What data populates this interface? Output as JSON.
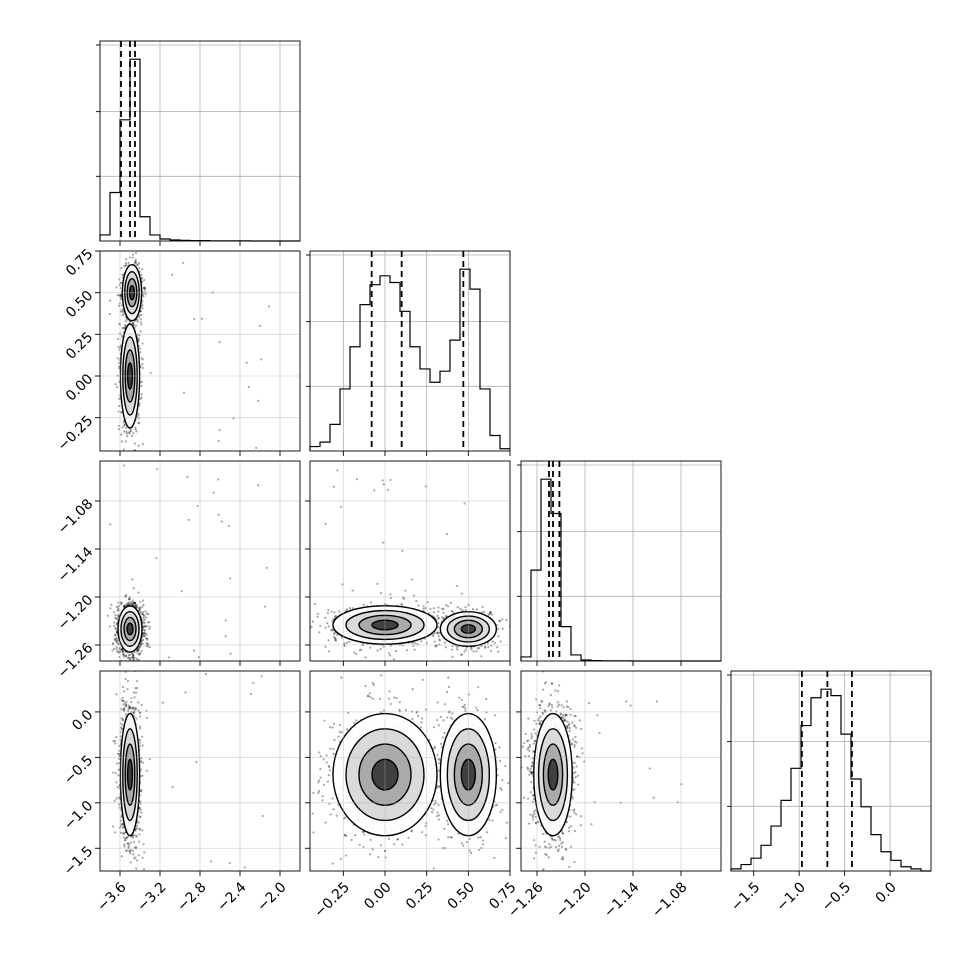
{
  "chart_data": {
    "type": "corner",
    "description_params": 4,
    "grid": true,
    "parameters": [
      {
        "ticks": [
          -3.6,
          -3.2,
          -2.8,
          -2.4,
          -2.0
        ],
        "tick_labels": [
          "−3.6",
          "−3.2",
          "−2.8",
          "−2.4",
          "−2.0"
        ],
        "range": [
          -3.8,
          -1.8
        ],
        "median": -3.5,
        "quantiles": [
          -3.59,
          -3.5,
          -3.45
        ]
      },
      {
        "ticks": [
          -0.25,
          0.0,
          0.25,
          0.5,
          0.75
        ],
        "tick_labels": [
          "−0.25",
          "0.00",
          "0.25",
          "0.50",
          "0.75"
        ],
        "range": [
          -0.45,
          0.75
        ],
        "median": 0.1,
        "quantiles": [
          -0.08,
          0.1,
          0.47
        ]
      },
      {
        "ticks": [
          -1.26,
          -1.2,
          -1.14,
          -1.08
        ],
        "tick_labels": [
          "−1.26",
          "−1.20",
          "−1.14",
          "−1.08"
        ],
        "range": [
          -1.28,
          -1.03
        ],
        "median": -1.24,
        "quantiles": [
          -1.245,
          -1.24,
          -1.232
        ]
      },
      {
        "ticks": [
          -1.5,
          -1.0,
          -0.5,
          0.0
        ],
        "tick_labels": [
          "−1.5",
          "−1.0",
          "−0.5",
          "0.0"
        ],
        "range": [
          -1.75,
          0.45
        ],
        "median": -0.69,
        "quantiles": [
          -0.97,
          -0.69,
          -0.42
        ]
      }
    ],
    "histograms": [
      {
        "param": 0,
        "edges": [
          -3.8,
          -3.7,
          -3.6,
          -3.5,
          -3.4,
          -3.3,
          -3.2,
          -3.1,
          -3.0,
          -2.9,
          -2.8,
          -2.7,
          -2.6,
          -2.5,
          -2.4,
          -2.3,
          -2.2,
          -2.1,
          -2.0,
          -1.9,
          -1.8
        ],
        "counts": [
          0.03,
          0.24,
          0.6,
          0.9,
          0.12,
          0.03,
          0.01,
          0.005,
          0.003,
          0.002,
          0.002,
          0.001,
          0.001,
          0.001,
          0.001,
          0,
          0,
          0,
          0,
          0
        ]
      },
      {
        "param": 1,
        "edges": [
          -0.45,
          -0.39,
          -0.33,
          -0.27,
          -0.21,
          -0.15,
          -0.09,
          -0.03,
          0.03,
          0.09,
          0.15,
          0.21,
          0.27,
          0.33,
          0.39,
          0.45,
          0.51,
          0.57,
          0.63,
          0.69,
          0.75
        ],
        "counts": [
          0.02,
          0.04,
          0.12,
          0.28,
          0.47,
          0.66,
          0.75,
          0.79,
          0.76,
          0.63,
          0.47,
          0.37,
          0.31,
          0.36,
          0.5,
          0.82,
          0.73,
          0.28,
          0.07,
          0.01
        ]
      },
      {
        "param": 2,
        "edges": [
          -1.28,
          -1.2675,
          -1.255,
          -1.2425,
          -1.23,
          -1.2175,
          -1.205,
          -1.1925,
          -1.18,
          -1.1675,
          -1.155,
          -1.1425,
          -1.13,
          -1.1175,
          -1.105,
          -1.0925,
          -1.08,
          -1.0675,
          -1.055,
          -1.0425,
          -1.03
        ],
        "counts": [
          0.02,
          0.45,
          0.9,
          0.73,
          0.17,
          0.03,
          0.005,
          0.002,
          0.001,
          0.001,
          0.001,
          0,
          0,
          0,
          0,
          0,
          0,
          0,
          0,
          0
        ]
      },
      {
        "param": 3,
        "edges": [
          -1.75,
          -1.64,
          -1.53,
          -1.42,
          -1.31,
          -1.2,
          -1.09,
          -0.98,
          -0.87,
          -0.76,
          -0.65,
          -0.54,
          -0.43,
          -0.32,
          -0.21,
          -0.1,
          0.01,
          0.12,
          0.23,
          0.34,
          0.45
        ],
        "counts": [
          0.01,
          0.03,
          0.06,
          0.12,
          0.21,
          0.33,
          0.48,
          0.68,
          0.81,
          0.85,
          0.82,
          0.64,
          0.43,
          0.3,
          0.17,
          0.09,
          0.05,
          0.02,
          0.01,
          0
        ]
      }
    ],
    "pairs": [
      {
        "x": 0,
        "y": 1,
        "modes": [
          {
            "x": -3.48,
            "y": 0.5,
            "sx": 0.04,
            "sy": 0.07,
            "w": 0.5
          },
          {
            "x": -3.5,
            "y": 0.0,
            "sx": 0.04,
            "sy": 0.13,
            "w": 0.5
          }
        ]
      },
      {
        "x": 0,
        "y": 2,
        "modes": [
          {
            "x": -3.5,
            "y": -1.24,
            "sx": 0.05,
            "sy": 0.012,
            "w": 1.0
          }
        ]
      },
      {
        "x": 1,
        "y": 2,
        "modes": [
          {
            "x": 0.0,
            "y": -1.235,
            "sx": 0.13,
            "sy": 0.01,
            "w": 0.55
          },
          {
            "x": 0.5,
            "y": -1.24,
            "sx": 0.07,
            "sy": 0.009,
            "w": 0.45
          }
        ]
      },
      {
        "x": 0,
        "y": 3,
        "modes": [
          {
            "x": -3.5,
            "y": -0.69,
            "sx": 0.04,
            "sy": 0.28,
            "w": 1.0
          }
        ]
      },
      {
        "x": 1,
        "y": 3,
        "modes": [
          {
            "x": 0.0,
            "y": -0.69,
            "sx": 0.13,
            "sy": 0.28,
            "w": 0.55
          },
          {
            "x": 0.5,
            "y": -0.69,
            "sx": 0.07,
            "sy": 0.28,
            "w": 0.45
          }
        ]
      },
      {
        "x": 2,
        "y": 3,
        "modes": [
          {
            "x": -1.24,
            "y": -0.69,
            "sx": 0.01,
            "sy": 0.28,
            "w": 1.0
          }
        ]
      }
    ]
  }
}
